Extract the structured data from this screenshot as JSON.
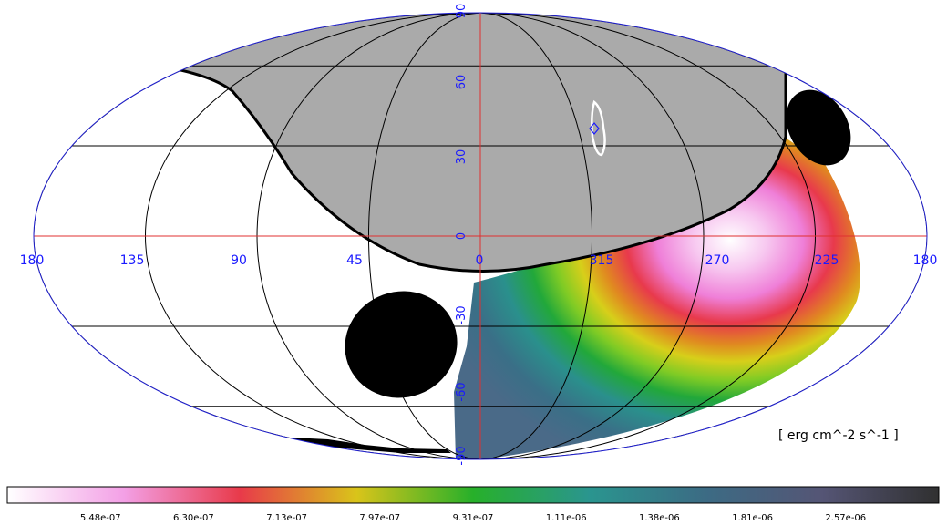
{
  "map": {
    "projection": "mollweide",
    "longitude_labels": [
      "180",
      "135",
      "90",
      "45",
      "0",
      "315",
      "270",
      "225",
      "180"
    ],
    "latitude_labels": [
      "90",
      "60",
      "30",
      "0",
      "-30",
      "-60",
      "-90"
    ],
    "unit_label": "[ erg cm^-2 s^-1 ]",
    "colors": {
      "graticule": "#000000",
      "equator_axes": "#e03030",
      "outline": "#2020d0",
      "labels": "#1a1aff",
      "occulted": "#aaaaaa",
      "masked": "#000000",
      "contour": "#ffffff"
    }
  },
  "colorbar": {
    "ticks": [
      "5.48e-07",
      "6.30e-07",
      "7.13e-07",
      "7.97e-07",
      "9.31e-07",
      "1.11e-06",
      "1.38e-06",
      "1.81e-06",
      "2.57e-06"
    ],
    "colors": [
      "#ffffff",
      "#f3a0e6",
      "#e83a4a",
      "#d9c41a",
      "#27b02a",
      "#2a958f",
      "#3c6b84",
      "#555575",
      "#303030"
    ]
  }
}
